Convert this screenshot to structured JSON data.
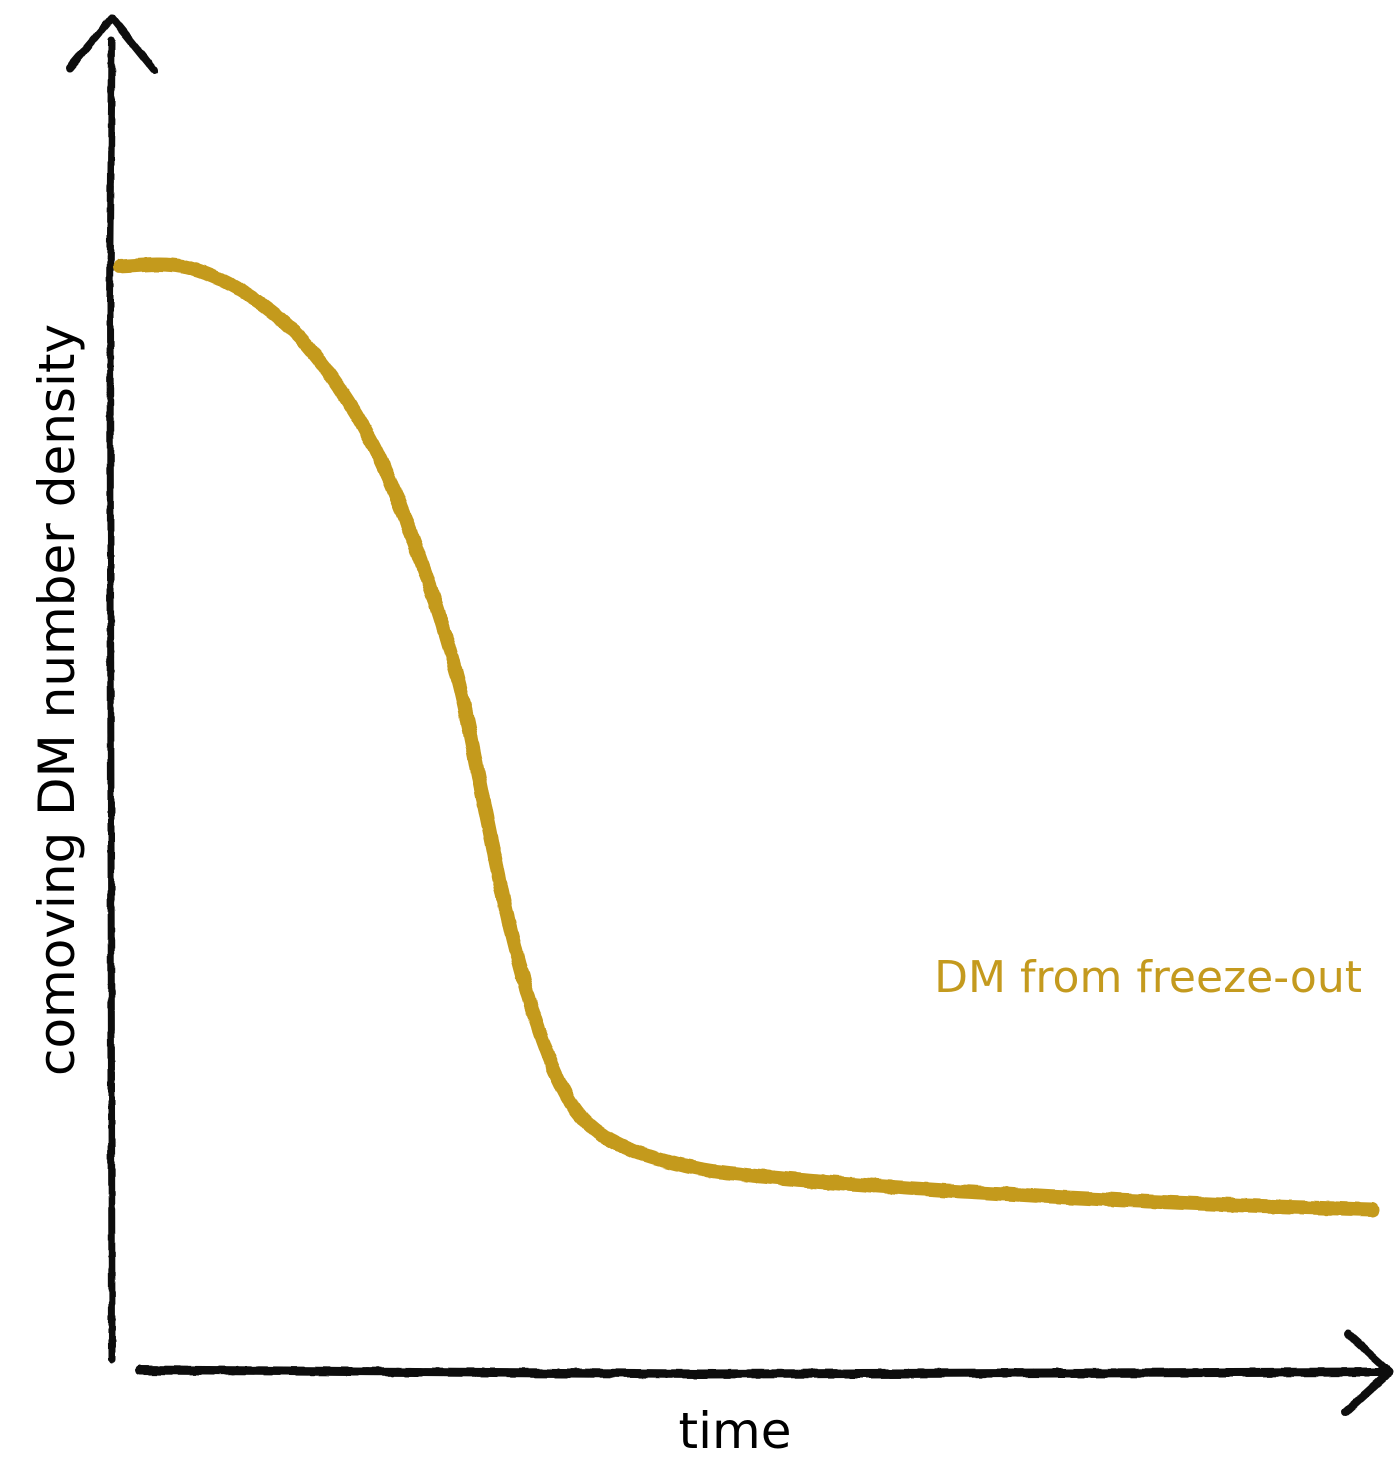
{
  "chart_data": {
    "type": "line",
    "title": "",
    "xlabel": "time",
    "ylabel": "comoving DM number density",
    "xlim": [
      0,
      1
    ],
    "ylim": [
      0,
      1
    ],
    "grid": false,
    "ticks": false,
    "style": "hand-drawn sketch, arrow-tipped axes, no tick labels",
    "colors": {
      "axis": "#111111",
      "series": "#c49a1e"
    },
    "series": [
      {
        "name": "DM from freeze-out",
        "color": "#c49a1e",
        "x": [
          0.0,
          0.05,
          0.1,
          0.15,
          0.2,
          0.24,
          0.27,
          0.29,
          0.31,
          0.33,
          0.35,
          0.37,
          0.4,
          0.45,
          0.5,
          0.6,
          0.7,
          0.8,
          0.9,
          1.0
        ],
        "y": [
          0.83,
          0.83,
          0.81,
          0.77,
          0.7,
          0.61,
          0.52,
          0.43,
          0.34,
          0.27,
          0.22,
          0.19,
          0.17,
          0.155,
          0.148,
          0.14,
          0.134,
          0.129,
          0.125,
          0.122
        ]
      }
    ]
  }
}
